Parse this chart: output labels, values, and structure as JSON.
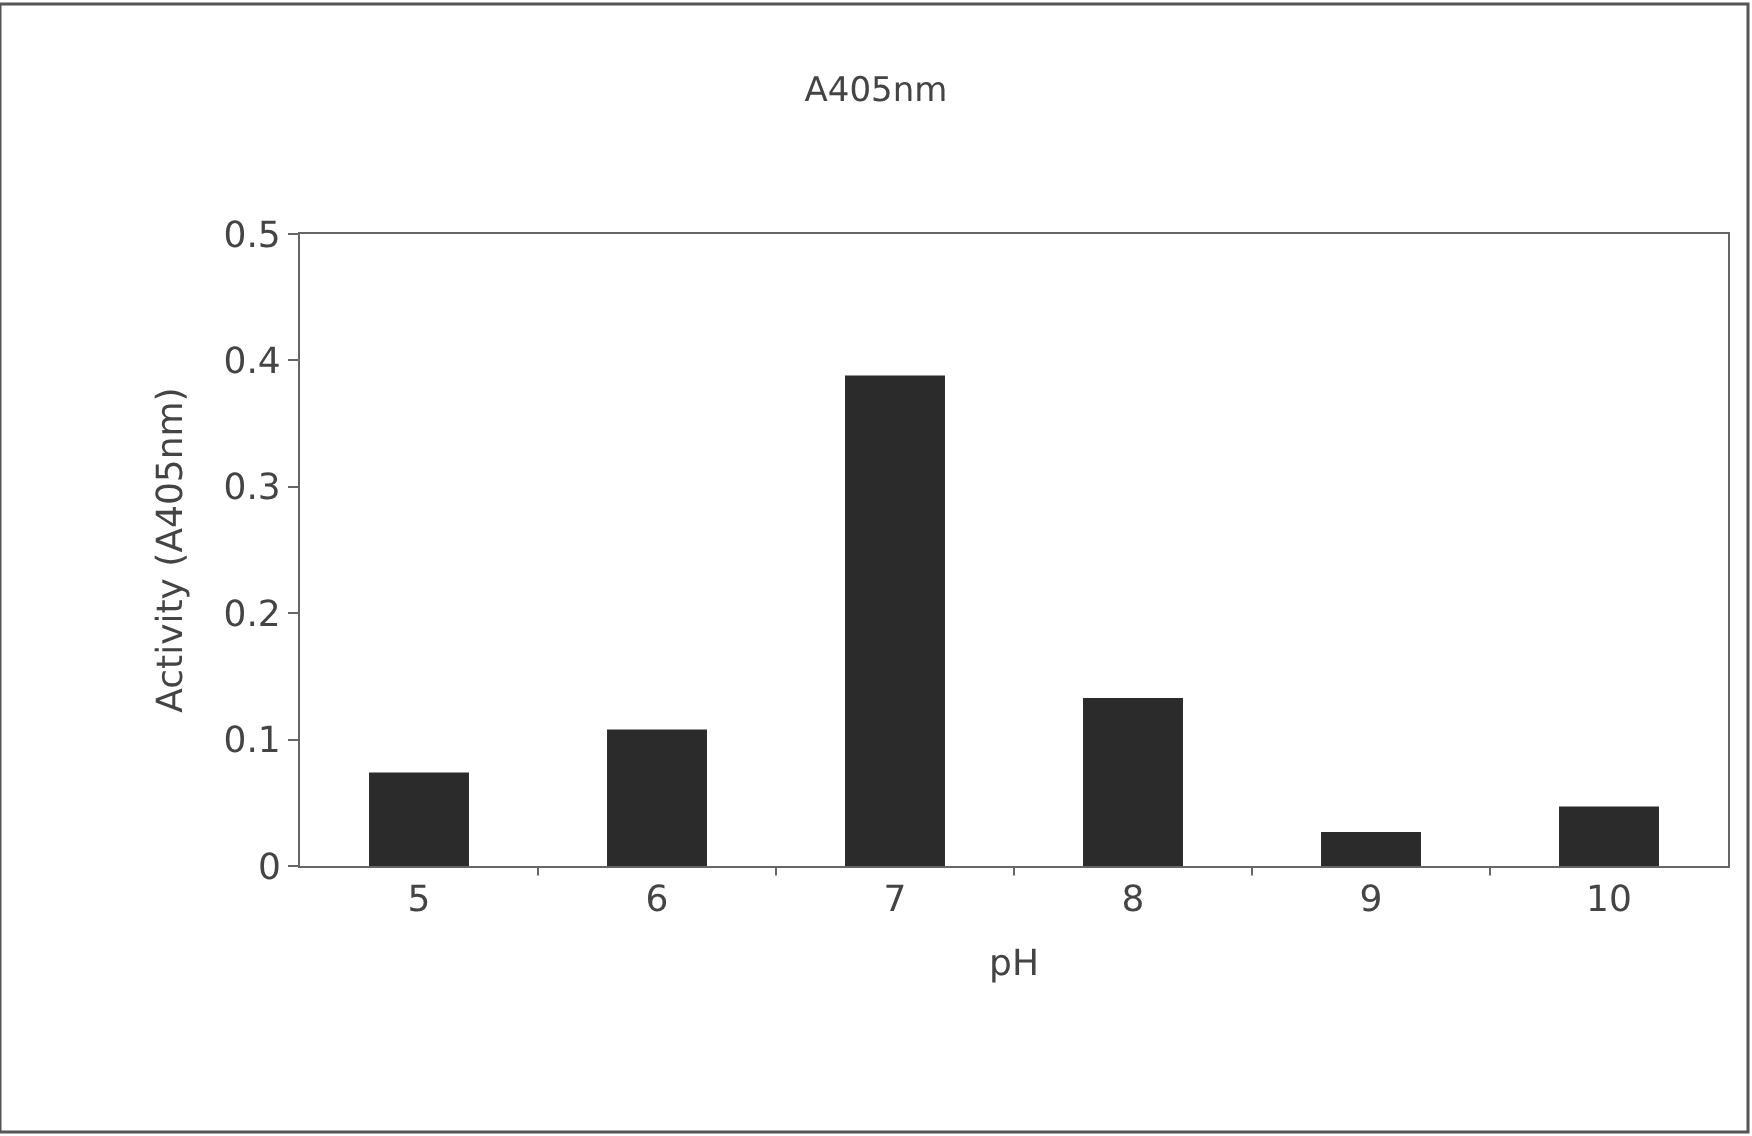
{
  "chart_data": {
    "type": "bar",
    "title": "A405nm",
    "xlabel": "pH",
    "ylabel": "Activity (A405nm)",
    "categories": [
      "5",
      "6",
      "7",
      "8",
      "9",
      "10"
    ],
    "values": [
      0.074,
      0.108,
      0.388,
      0.133,
      0.027,
      0.047
    ],
    "color": "#2b2b2b",
    "ylim": [
      0,
      0.5
    ],
    "yticks": [
      0,
      0.1,
      0.2,
      0.3,
      0.4,
      0.5
    ]
  }
}
